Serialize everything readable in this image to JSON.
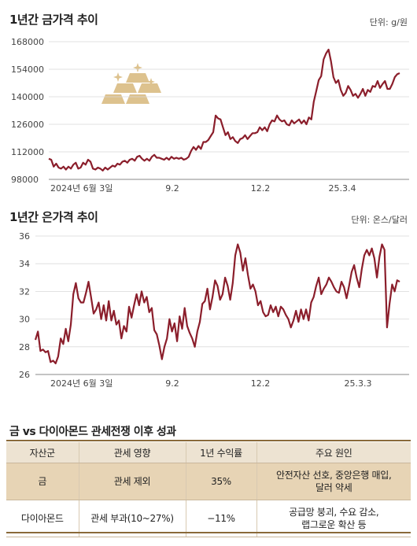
{
  "colors": {
    "line": "#8b1e2b",
    "gold": "#ddc28e",
    "header_bg": "#ede3d2",
    "gold_row_bg": "#e7d4b5"
  },
  "gold_chart": {
    "title": "1년간 금가격 추이",
    "unit": "단위: g/원",
    "icon": "gold-bars-icon"
  },
  "silver_chart": {
    "title": "1년간 은가격 추이",
    "unit": "단위: 온스/달러"
  },
  "chart_data": [
    {
      "type": "line",
      "title": "1년간 금가격 추이",
      "ylabel": "단위: g/원",
      "ylim": [
        98000,
        168000
      ],
      "yticks": [
        98000,
        112000,
        126000,
        140000,
        154000,
        168000
      ],
      "xticks": [
        "2024년 6월 3일",
        "9.2",
        "12.2",
        "25.3.4"
      ],
      "series": [
        {
          "values": [
            108500,
            108000,
            104500,
            106000,
            104000,
            103500,
            104500,
            103000,
            104500,
            103500,
            105500,
            106500,
            103500,
            104000,
            106500,
            105500,
            108000,
            107000,
            103500,
            103000,
            104000,
            103500,
            102500,
            104000,
            103000,
            104000,
            105000,
            104500,
            106000,
            105500,
            107000,
            107500,
            106500,
            108000,
            108500,
            107500,
            109500,
            110000,
            108500,
            107500,
            108500,
            107500,
            109500,
            110500,
            109000,
            109000,
            108500,
            108000,
            109000,
            108000,
            109500,
            108500,
            109000,
            108500,
            109000,
            108000,
            108500,
            109500,
            112500,
            114500,
            113000,
            115000,
            113500,
            117000,
            117000,
            118000,
            120000,
            122000,
            130500,
            129000,
            128500,
            124500,
            120500,
            122000,
            118500,
            119500,
            117500,
            116500,
            118500,
            119000,
            120500,
            118500,
            120000,
            121500,
            121500,
            122000,
            124500,
            123000,
            124500,
            122500,
            126000,
            128000,
            127500,
            130500,
            128500,
            127500,
            128000,
            126000,
            125500,
            128000,
            126500,
            127500,
            128500,
            126500,
            128000,
            126000,
            129500,
            128500,
            137500,
            143000,
            148500,
            150500,
            159000,
            162000,
            164000,
            158000,
            150000,
            147000,
            148500,
            143500,
            140500,
            142000,
            145500,
            143500,
            140500,
            141500,
            139500,
            141500,
            144000,
            140500,
            143500,
            142500,
            145500,
            145000,
            148000,
            144500,
            146500,
            148000,
            144000,
            144000,
            146500,
            150000,
            151500,
            152000
          ]
        }
      ]
    },
    {
      "type": "line",
      "title": "1년간 은가격 추이",
      "ylabel": "단위: 온스/달러",
      "ylim": [
        26,
        36
      ],
      "yticks": [
        26,
        28,
        30,
        32,
        34,
        36
      ],
      "xticks": [
        "2024년 6월 3일",
        "9.2",
        "12.2",
        "25.3.3"
      ],
      "series": [
        {
          "values": [
            28.5,
            29.1,
            27.7,
            27.8,
            27.6,
            27.7,
            26.9,
            27.0,
            26.8,
            27.3,
            28.6,
            28.2,
            29.3,
            28.4,
            29.6,
            31.8,
            32.6,
            31.5,
            31.2,
            31.2,
            31.9,
            32.7,
            31.6,
            30.4,
            30.7,
            31.2,
            30.0,
            31.0,
            29.9,
            31.3,
            29.9,
            30.6,
            29.6,
            29.9,
            28.6,
            29.5,
            29.1,
            30.9,
            30.1,
            31.0,
            31.8,
            31.0,
            32.0,
            31.2,
            31.6,
            30.5,
            30.8,
            29.2,
            28.9,
            28.1,
            27.1,
            28.0,
            28.6,
            30.0,
            29.1,
            29.7,
            28.4,
            30.2,
            29.3,
            30.8,
            29.5,
            29.0,
            28.6,
            28.0,
            29.1,
            29.8,
            31.1,
            31.3,
            32.2,
            30.7,
            31.6,
            32.8,
            32.4,
            31.4,
            31.8,
            33.0,
            32.4,
            31.4,
            32.6,
            34.6,
            35.4,
            34.8,
            33.5,
            34.4,
            33.2,
            32.2,
            32.5,
            32.0,
            31.0,
            31.3,
            30.5,
            30.2,
            30.3,
            31.0,
            30.5,
            30.9,
            30.2,
            30.9,
            30.7,
            30.3,
            30.0,
            29.4,
            29.9,
            30.6,
            29.8,
            30.7,
            30.0,
            30.7,
            29.9,
            31.2,
            31.6,
            32.4,
            33.0,
            31.8,
            32.2,
            32.5,
            33.0,
            32.7,
            32.3,
            32.0,
            31.9,
            32.7,
            32.3,
            31.5,
            32.4,
            33.4,
            33.9,
            33.0,
            32.3,
            33.6,
            34.6,
            35.0,
            34.6,
            35.1,
            34.4,
            33.0,
            34.5,
            35.4,
            35.0,
            29.4,
            31.1,
            32.5,
            32.0,
            32.8,
            32.7
          ]
        }
      ]
    },
    {
      "type": "table",
      "title": "금 vs 다이아몬드 관세전쟁 이후 성과",
      "columns": [
        "자산군",
        "관세 영향",
        "1년 수익률",
        "주요 원인"
      ],
      "rows": [
        [
          "금",
          "관세 제외",
          "35%",
          "안전자산 선호, 중앙은행 매입, 달러 약세"
        ],
        [
          "다이아몬드",
          "관세 부과(10~27%)",
          "−11%",
          "공급망 붕괴, 수요 감소, 랩그로운 확산 등"
        ]
      ]
    }
  ],
  "table": {
    "title": "금 vs 다이아몬드 관세전쟁 이후 성과",
    "headers": [
      "자산군",
      "관세 영향",
      "1년 수익률",
      "주요 원인"
    ],
    "gold": {
      "asset": "금",
      "tariff": "관세 제외",
      "return": "35%",
      "reason_line1": "안전자산 선호, 중앙은행 매입,",
      "reason_line2": "달러 약세"
    },
    "diamond": {
      "asset": "다이아몬드",
      "tariff": "관세 부과(10~27%)",
      "return": "−11%",
      "reason_line1": "공급망 붕괴, 수요 감소,",
      "reason_line2": "랩그로운 확산 등"
    }
  }
}
